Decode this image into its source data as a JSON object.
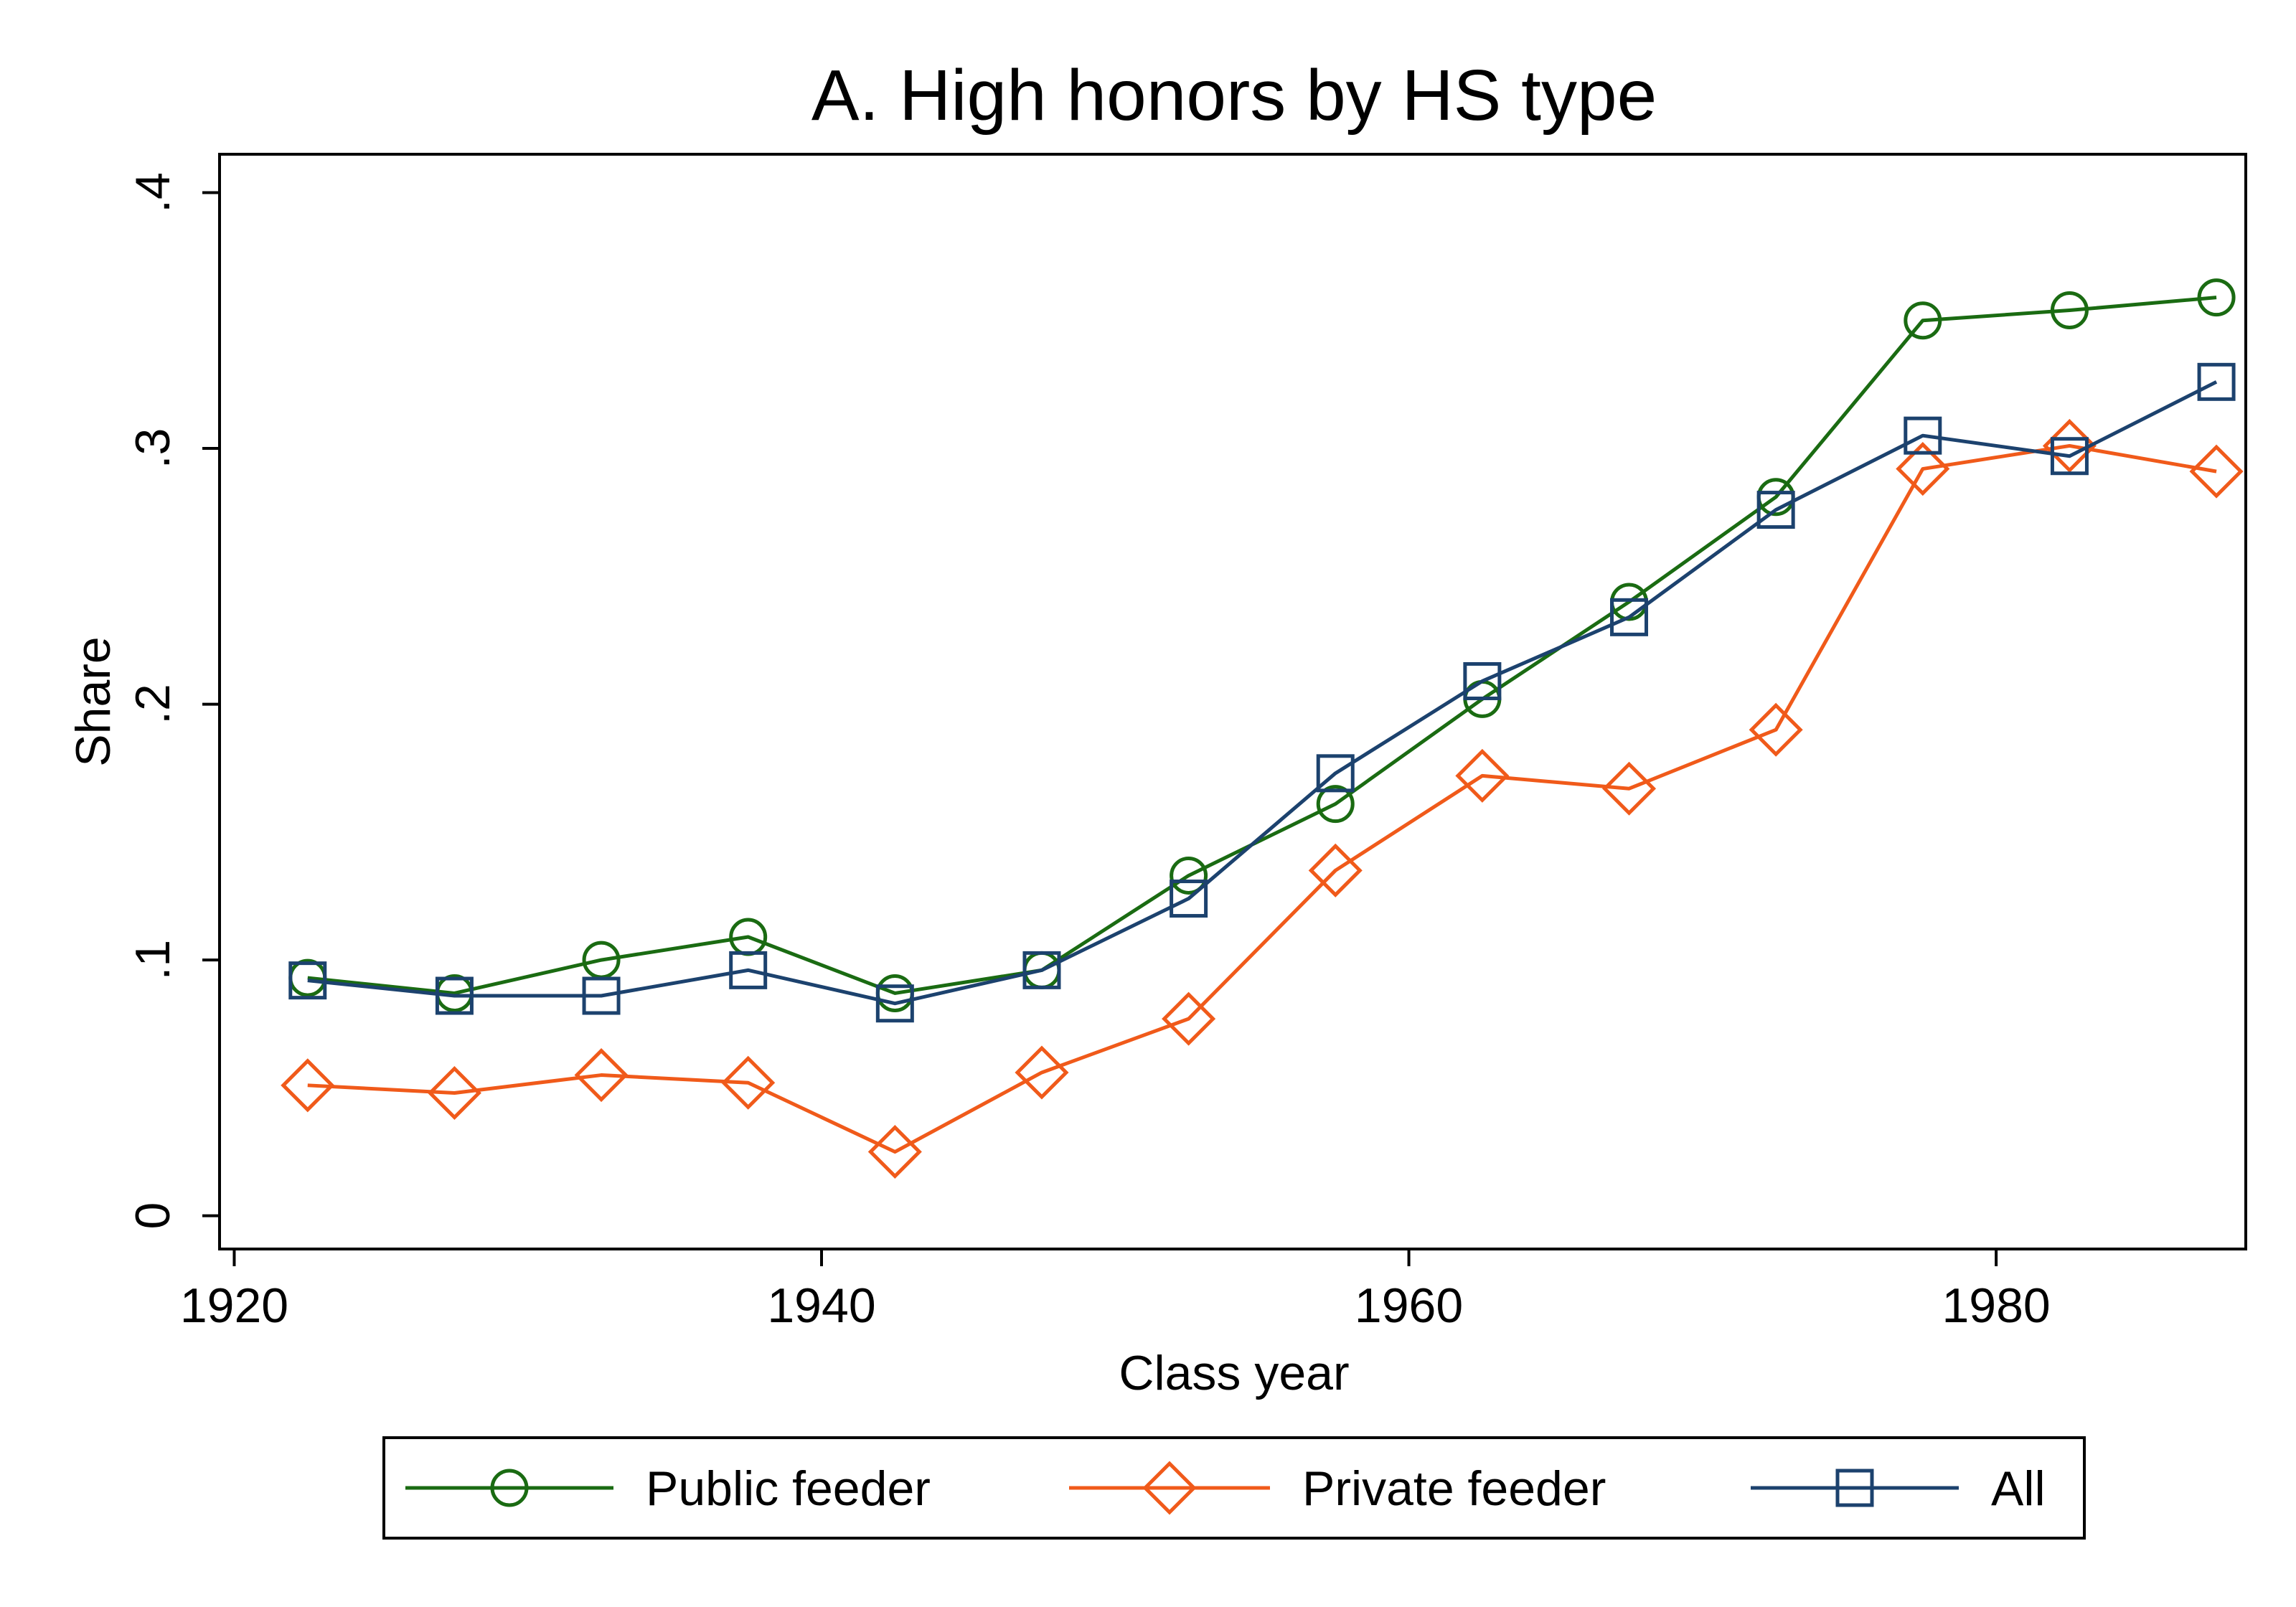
{
  "chart_data": {
    "type": "line",
    "title": "A. High honors by HS type",
    "xlabel": "Class year",
    "ylabel": "Share",
    "xlim": [
      1919.5,
      1988.5
    ],
    "ylim": [
      -0.013,
      0.415
    ],
    "x_ticks": [
      1920,
      1940,
      1960,
      1980
    ],
    "x_tick_labels": [
      "1920",
      "1940",
      "1960",
      "1980"
    ],
    "y_ticks": [
      0,
      0.1,
      0.2,
      0.3,
      0.4
    ],
    "y_tick_labels": [
      "0",
      ".1",
      ".2",
      ".3",
      ".4"
    ],
    "grid": false,
    "legend_position": "bottom",
    "x": [
      1922.5,
      1927.5,
      1932.5,
      1937.5,
      1942.5,
      1947.5,
      1952.5,
      1957.5,
      1962.5,
      1967.5,
      1972.5,
      1977.5,
      1982.5,
      1987.5
    ],
    "series": [
      {
        "name": "Public feeder",
        "color": "#1a6b12",
        "marker": "circle",
        "values": [
          0.093,
          0.087,
          0.1,
          0.109,
          0.087,
          0.096,
          0.133,
          0.161,
          0.202,
          0.24,
          0.281,
          0.35,
          0.354,
          0.359
        ]
      },
      {
        "name": "Private feeder",
        "color": "#f05a1a",
        "marker": "diamond",
        "values": [
          0.051,
          0.048,
          0.055,
          0.052,
          0.025,
          0.056,
          0.077,
          0.135,
          0.172,
          0.167,
          0.19,
          0.292,
          0.301,
          0.291
        ]
      },
      {
        "name": "All",
        "color": "#1c426e",
        "marker": "square",
        "values": [
          0.092,
          0.086,
          0.086,
          0.096,
          0.083,
          0.096,
          0.124,
          0.173,
          0.209,
          0.234,
          0.276,
          0.305,
          0.297,
          0.326
        ]
      }
    ]
  }
}
